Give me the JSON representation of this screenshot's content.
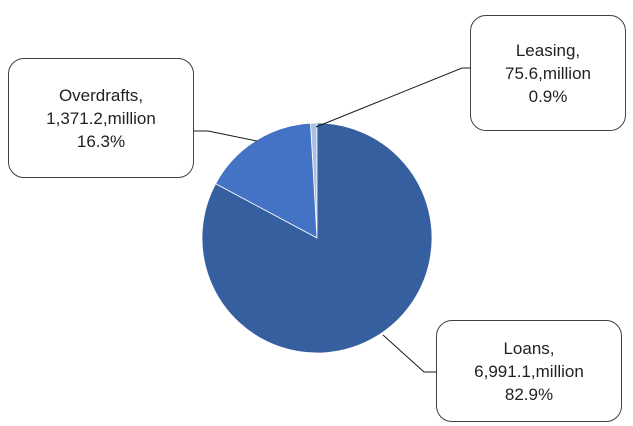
{
  "chart_data": {
    "type": "pie",
    "title": "",
    "unit": "million",
    "slices": [
      {
        "name": "Loans",
        "value": "6,991.1",
        "unit_text": "million",
        "percent": "82.9%",
        "share": 82.9,
        "color": "#365f9f"
      },
      {
        "name": "Overdrafts",
        "value": "1,371.2",
        "unit_text": "million",
        "percent": "16.3%",
        "share": 16.3,
        "color": "#4472c4"
      },
      {
        "name": "Leasing",
        "value": "75.6",
        "unit_text": "million",
        "percent": "0.9%",
        "share": 0.9,
        "color": "#a9bfe3"
      }
    ],
    "legend": "none",
    "data_labels": "callout"
  }
}
